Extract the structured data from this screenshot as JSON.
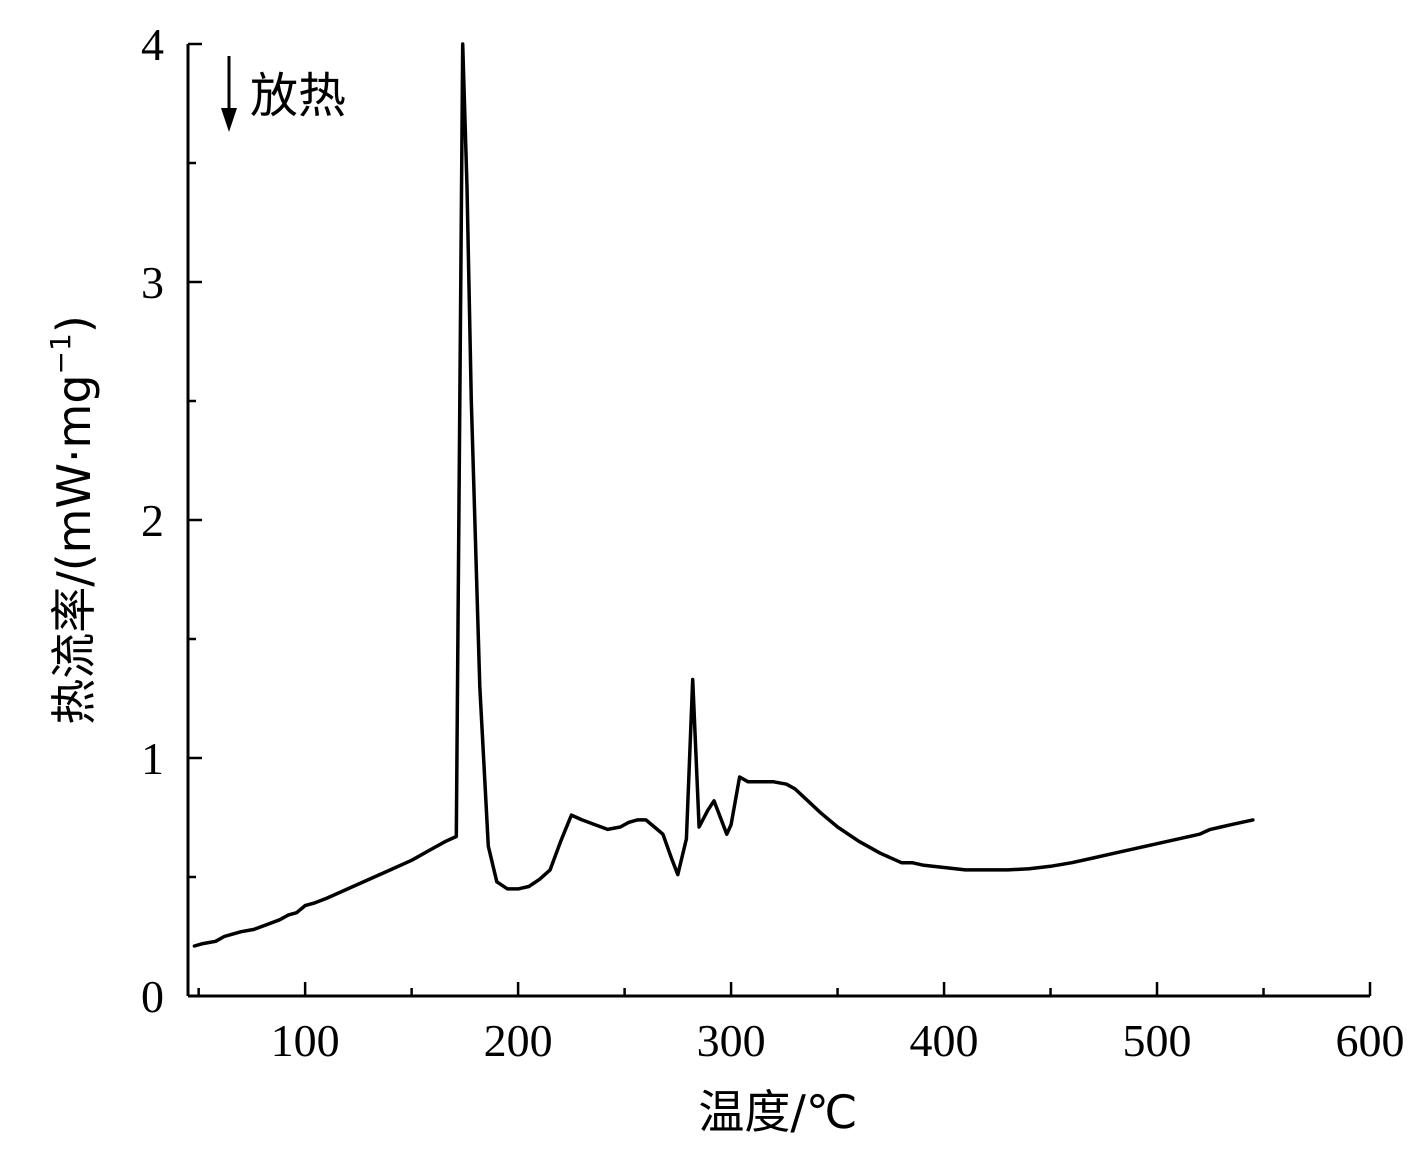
{
  "chart_data": {
    "type": "line",
    "title": "",
    "xlabel": "温度/℃",
    "ylabel_prefix": "热流率/(mW·mg",
    "ylabel_sup": "−1",
    "ylabel_suffix": ")",
    "annotation": "放热",
    "xlim": [
      45,
      600
    ],
    "ylim": [
      0,
      4
    ],
    "x_ticks": [
      100,
      200,
      300,
      400,
      500,
      600
    ],
    "y_ticks": [
      0,
      1,
      2,
      3,
      4
    ],
    "grid": false,
    "legend": "none",
    "series": [
      {
        "color": "#000000",
        "x": [
          48,
          52,
          58,
          62,
          66,
          70,
          76,
          82,
          88,
          92,
          96,
          100,
          104,
          110,
          120,
          130,
          140,
          150,
          160,
          166,
          171,
          174,
          176,
          178,
          182,
          186,
          190,
          195,
          200,
          205,
          210,
          215,
          220,
          225,
          230,
          236,
          242,
          248,
          252,
          256,
          260,
          264,
          268,
          272,
          275,
          279,
          282,
          285,
          289,
          292,
          295,
          298,
          300,
          304,
          308,
          312,
          320,
          326,
          330,
          336,
          342,
          350,
          360,
          370,
          380,
          385,
          390,
          400,
          410,
          420,
          430,
          440,
          450,
          460,
          470,
          480,
          490,
          500,
          510,
          520,
          525,
          530,
          535,
          545
        ],
        "y": [
          0.21,
          0.22,
          0.23,
          0.25,
          0.26,
          0.27,
          0.28,
          0.3,
          0.32,
          0.34,
          0.35,
          0.38,
          0.39,
          0.41,
          0.45,
          0.49,
          0.53,
          0.57,
          0.62,
          0.65,
          0.67,
          4.0,
          3.4,
          2.5,
          1.3,
          0.63,
          0.48,
          0.45,
          0.45,
          0.46,
          0.49,
          0.53,
          0.65,
          0.76,
          0.74,
          0.72,
          0.7,
          0.71,
          0.73,
          0.74,
          0.74,
          0.71,
          0.68,
          0.58,
          0.51,
          0.66,
          1.33,
          0.71,
          0.78,
          0.82,
          0.75,
          0.68,
          0.72,
          0.92,
          0.9,
          0.9,
          0.9,
          0.89,
          0.87,
          0.82,
          0.77,
          0.71,
          0.65,
          0.6,
          0.56,
          0.56,
          0.55,
          0.54,
          0.53,
          0.53,
          0.53,
          0.535,
          0.545,
          0.56,
          0.58,
          0.6,
          0.62,
          0.64,
          0.66,
          0.68,
          0.7,
          0.71,
          0.72,
          0.74
        ]
      }
    ]
  }
}
